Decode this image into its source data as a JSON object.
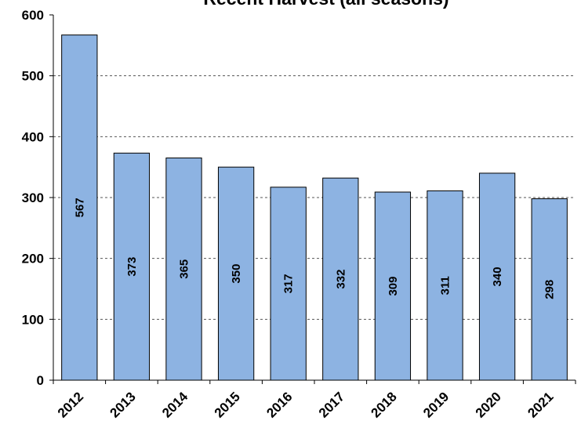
{
  "chart_data": {
    "type": "bar",
    "title": "Recent Harvest (all seasons)",
    "categories": [
      "2012",
      "2013",
      "2014",
      "2015",
      "2016",
      "2017",
      "2018",
      "2019",
      "2020",
      "2021"
    ],
    "values": [
      567,
      373,
      365,
      350,
      317,
      332,
      309,
      311,
      340,
      298
    ],
    "color": "#8db3e2",
    "ylim": [
      0,
      600
    ],
    "yticks": [
      0,
      100,
      200,
      300,
      400,
      500,
      600
    ],
    "grid": true
  }
}
